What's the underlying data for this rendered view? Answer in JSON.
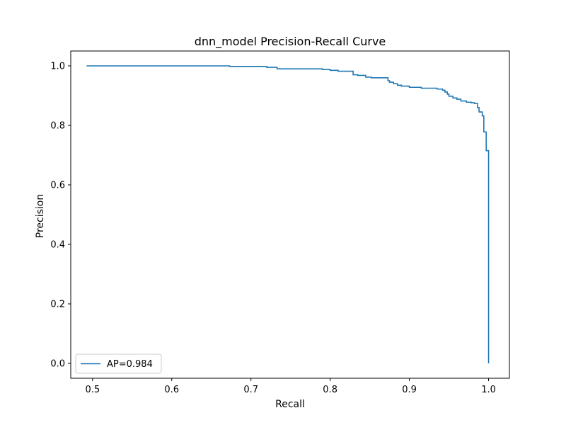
{
  "chart_data": {
    "type": "line",
    "title": "dnn_model Precision-Recall Curve",
    "xlabel": "Recall",
    "ylabel": "Precision",
    "xlim": [
      0.4725,
      1.0263
    ],
    "ylim": [
      -0.05,
      1.05
    ],
    "xticks": [
      0.5,
      0.6,
      0.7,
      0.8,
      0.9,
      1.0
    ],
    "xtick_labels": [
      "0.5",
      "0.6",
      "0.7",
      "0.8",
      "0.9",
      "1.0"
    ],
    "yticks": [
      0.0,
      0.2,
      0.4,
      0.6,
      0.8,
      1.0
    ],
    "ytick_labels": [
      "0.0",
      "0.2",
      "0.4",
      "0.6",
      "0.8",
      "1.0"
    ],
    "grid": false,
    "legend_position": "lower-left",
    "series": [
      {
        "name": "AP=0.984",
        "color": "#1f77b4",
        "drawstyle": "steps-post",
        "x": [
          0.4925,
          0.673,
          0.72,
          0.733,
          0.74,
          0.76,
          0.79,
          0.8,
          0.81,
          0.829,
          0.835,
          0.845,
          0.852,
          0.873,
          0.875,
          0.88,
          0.885,
          0.89,
          0.9,
          0.915,
          0.935,
          0.942,
          0.945,
          0.948,
          0.95,
          0.955,
          0.96,
          0.965,
          0.972,
          0.978,
          0.982,
          0.986,
          0.988,
          0.992,
          0.994,
          0.997,
          1.0
        ],
        "y": [
          1.0,
          0.998,
          0.995,
          0.99,
          0.99,
          0.99,
          0.988,
          0.985,
          0.982,
          0.97,
          0.968,
          0.962,
          0.96,
          0.95,
          0.945,
          0.94,
          0.935,
          0.932,
          0.928,
          0.925,
          0.922,
          0.918,
          0.912,
          0.905,
          0.898,
          0.892,
          0.888,
          0.882,
          0.878,
          0.876,
          0.874,
          0.86,
          0.845,
          0.832,
          0.778,
          0.715,
          0.0
        ]
      }
    ]
  }
}
